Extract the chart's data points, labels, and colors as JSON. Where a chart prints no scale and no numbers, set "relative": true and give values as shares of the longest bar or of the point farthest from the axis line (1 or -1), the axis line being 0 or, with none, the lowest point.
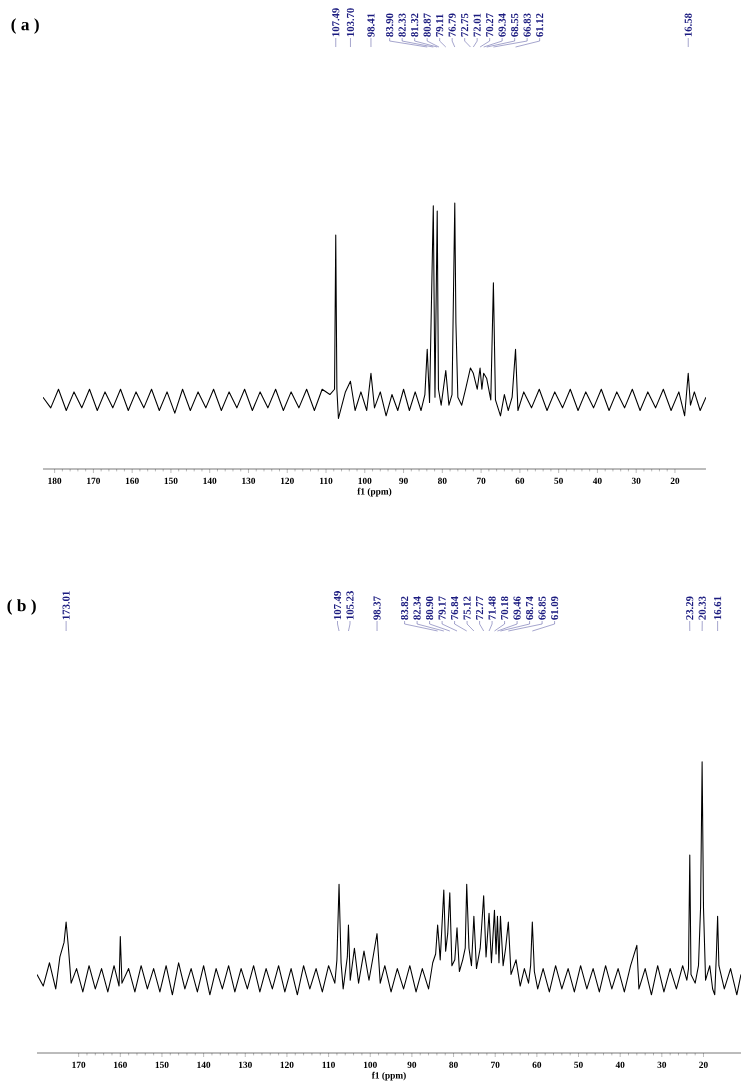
{
  "chart_data": [
    {
      "type": "line",
      "title": "( a )",
      "xlabel": "f1 (ppm)",
      "relative": true,
      "xlim": [
        183,
        12
      ],
      "xticks": [
        180,
        170,
        160,
        150,
        140,
        130,
        120,
        110,
        100,
        90,
        80,
        70,
        60,
        50,
        40,
        30,
        20
      ],
      "color": "#000000",
      "x": [
        183,
        181,
        179,
        177,
        175,
        173,
        171,
        169,
        167,
        165,
        163,
        161,
        159,
        157,
        155,
        153,
        151,
        149,
        147,
        145,
        143,
        141,
        139,
        137,
        135,
        133,
        131,
        129,
        127,
        125,
        123,
        121,
        119,
        117,
        115,
        113,
        111,
        109,
        107.8,
        107.49,
        107.2,
        106.8,
        105,
        103.7,
        102.5,
        101,
        99.5,
        98.41,
        97.5,
        96,
        94.5,
        93,
        91.5,
        90,
        88.5,
        87,
        85.5,
        84.5,
        83.9,
        83.3,
        82.33,
        81.9,
        81.32,
        81,
        80.3,
        79.11,
        78.3,
        77.5,
        76.79,
        76.5,
        76,
        75,
        74,
        72.75,
        72.01,
        71,
        70.27,
        69.8,
        69.34,
        68.55,
        67.5,
        66.83,
        66.3,
        65,
        64,
        63,
        62,
        61.12,
        60.5,
        59,
        57,
        55,
        53,
        51,
        49,
        47,
        45,
        43,
        41,
        39,
        37,
        35,
        33,
        31,
        29,
        27,
        25,
        23,
        21,
        19,
        17.5,
        16.58,
        16,
        15,
        13.5,
        12
      ],
      "values": [
        0.27,
        0.23,
        0.3,
        0.22,
        0.29,
        0.23,
        0.3,
        0.22,
        0.29,
        0.23,
        0.3,
        0.22,
        0.29,
        0.23,
        0.3,
        0.22,
        0.29,
        0.21,
        0.3,
        0.22,
        0.29,
        0.23,
        0.3,
        0.22,
        0.29,
        0.23,
        0.3,
        0.22,
        0.29,
        0.23,
        0.3,
        0.22,
        0.29,
        0.23,
        0.3,
        0.22,
        0.3,
        0.28,
        0.3,
        0.88,
        0.3,
        0.19,
        0.29,
        0.33,
        0.22,
        0.29,
        0.22,
        0.36,
        0.23,
        0.29,
        0.2,
        0.28,
        0.22,
        0.3,
        0.22,
        0.29,
        0.22,
        0.28,
        0.45,
        0.25,
        0.99,
        0.27,
        0.97,
        0.3,
        0.24,
        0.37,
        0.24,
        0.28,
        1.0,
        0.55,
        0.27,
        0.24,
        0.3,
        0.38,
        0.36,
        0.3,
        0.38,
        0.3,
        0.36,
        0.34,
        0.26,
        0.7,
        0.26,
        0.2,
        0.28,
        0.22,
        0.27,
        0.45,
        0.22,
        0.29,
        0.23,
        0.3,
        0.22,
        0.29,
        0.23,
        0.3,
        0.22,
        0.29,
        0.23,
        0.3,
        0.22,
        0.29,
        0.23,
        0.3,
        0.22,
        0.29,
        0.23,
        0.3,
        0.22,
        0.29,
        0.2,
        0.36,
        0.24,
        0.29,
        0.22,
        0.27
      ],
      "annotations": [
        {
          "text": "107.49",
          "x": 107.49
        },
        {
          "text": "103.70",
          "x": 103.7
        },
        {
          "text": "98.41",
          "x": 98.41
        },
        {
          "text": "83.90",
          "x": 83.9
        },
        {
          "text": "82.33",
          "x": 82.33
        },
        {
          "text": "81.32",
          "x": 81.32
        },
        {
          "text": "80.87",
          "x": 80.87
        },
        {
          "text": "79.11",
          "x": 79.11
        },
        {
          "text": "76.79",
          "x": 76.79
        },
        {
          "text": "72.75",
          "x": 72.75
        },
        {
          "text": "72.01",
          "x": 72.01
        },
        {
          "text": "70.27",
          "x": 70.27
        },
        {
          "text": "69.34",
          "x": 69.34
        },
        {
          "text": "68.55",
          "x": 68.55
        },
        {
          "text": "66.83",
          "x": 66.83
        },
        {
          "text": "61.12",
          "x": 61.12
        },
        {
          "text": "16.58",
          "x": 16.58
        }
      ]
    },
    {
      "type": "line",
      "title": "( b )",
      "xlabel": "f1 (ppm)",
      "relative": true,
      "xlim": [
        180,
        11
      ],
      "xticks": [
        170,
        160,
        150,
        140,
        130,
        120,
        110,
        100,
        90,
        80,
        70,
        60,
        50,
        40,
        30,
        20
      ],
      "color": "#000000",
      "x": [
        180,
        178.5,
        177,
        175.5,
        174.5,
        173.5,
        173.01,
        172.5,
        171.8,
        170.5,
        169,
        167.5,
        166,
        164.5,
        163,
        161.5,
        160.3,
        160,
        159.6,
        158,
        156.5,
        155,
        153.5,
        152,
        150.5,
        149,
        147.5,
        146,
        144.5,
        143,
        141.5,
        140,
        138.5,
        137,
        135.5,
        134,
        132.5,
        131,
        129.5,
        128,
        126.5,
        125,
        123.5,
        122,
        120.5,
        119,
        117.5,
        116,
        114.5,
        113,
        111.5,
        110,
        108.5,
        108,
        107.49,
        107,
        106.5,
        105.5,
        105.23,
        104.8,
        103.8,
        102.8,
        101.5,
        100.3,
        99.2,
        98.37,
        97.6,
        96.5,
        95,
        93.5,
        92,
        90.5,
        89,
        87.5,
        86,
        85,
        84.3,
        83.82,
        83.2,
        82.34,
        81.9,
        81.4,
        80.9,
        80.4,
        79.7,
        79.17,
        78.6,
        77.8,
        77.2,
        76.84,
        76.3,
        75.7,
        75.12,
        74.5,
        73.6,
        72.77,
        72.2,
        71.48,
        70.9,
        70.18,
        69.8,
        69.46,
        69.1,
        68.74,
        68.1,
        67.5,
        66.85,
        66.2,
        65,
        64,
        63,
        62,
        61.5,
        61.09,
        60.6,
        59.8,
        58.5,
        57,
        55.5,
        54,
        52.5,
        51,
        49.5,
        48,
        46.5,
        45,
        43.5,
        42,
        40.5,
        39,
        37.5,
        36,
        35.5,
        34,
        32.5,
        31,
        29.5,
        28,
        26.5,
        25,
        24,
        23.6,
        23.29,
        23,
        22,
        21.2,
        20.7,
        20.33,
        20,
        19.5,
        18.5,
        17.8,
        17.3,
        16.9,
        16.61,
        16.3,
        15,
        13.5,
        12,
        11
      ],
      "values": [
        0.27,
        0.23,
        0.31,
        0.22,
        0.33,
        0.38,
        0.45,
        0.37,
        0.24,
        0.29,
        0.21,
        0.3,
        0.22,
        0.29,
        0.21,
        0.3,
        0.23,
        0.4,
        0.24,
        0.29,
        0.21,
        0.3,
        0.22,
        0.29,
        0.21,
        0.3,
        0.2,
        0.31,
        0.22,
        0.29,
        0.21,
        0.3,
        0.2,
        0.29,
        0.22,
        0.3,
        0.21,
        0.29,
        0.22,
        0.3,
        0.21,
        0.29,
        0.22,
        0.3,
        0.21,
        0.29,
        0.2,
        0.3,
        0.22,
        0.29,
        0.21,
        0.3,
        0.24,
        0.32,
        0.58,
        0.31,
        0.22,
        0.33,
        0.44,
        0.25,
        0.36,
        0.24,
        0.35,
        0.25,
        0.34,
        0.41,
        0.24,
        0.3,
        0.21,
        0.29,
        0.22,
        0.3,
        0.21,
        0.29,
        0.22,
        0.31,
        0.34,
        0.44,
        0.32,
        0.56,
        0.35,
        0.41,
        0.55,
        0.3,
        0.32,
        0.43,
        0.28,
        0.32,
        0.36,
        0.58,
        0.36,
        0.3,
        0.47,
        0.29,
        0.36,
        0.54,
        0.33,
        0.48,
        0.31,
        0.49,
        0.34,
        0.47,
        0.31,
        0.47,
        0.3,
        0.36,
        0.45,
        0.27,
        0.32,
        0.23,
        0.29,
        0.24,
        0.3,
        0.45,
        0.28,
        0.22,
        0.29,
        0.21,
        0.3,
        0.22,
        0.29,
        0.21,
        0.3,
        0.22,
        0.29,
        0.21,
        0.3,
        0.22,
        0.29,
        0.21,
        0.3,
        0.37,
        0.22,
        0.29,
        0.2,
        0.3,
        0.21,
        0.29,
        0.22,
        0.3,
        0.25,
        0.29,
        0.68,
        0.27,
        0.24,
        0.3,
        0.5,
        1.0,
        0.5,
        0.25,
        0.3,
        0.22,
        0.2,
        0.34,
        0.47,
        0.3,
        0.22,
        0.29,
        0.2,
        0.27
      ],
      "annotations": [
        {
          "text": "173.01",
          "x": 173.01
        },
        {
          "text": "107.49",
          "x": 107.49
        },
        {
          "text": "105.23",
          "x": 105.23
        },
        {
          "text": "98.37",
          "x": 98.37
        },
        {
          "text": "83.82",
          "x": 83.82
        },
        {
          "text": "82.34",
          "x": 82.34
        },
        {
          "text": "80.90",
          "x": 80.9
        },
        {
          "text": "79.17",
          "x": 79.17
        },
        {
          "text": "76.84",
          "x": 76.84
        },
        {
          "text": "75.12",
          "x": 75.12
        },
        {
          "text": "72.77",
          "x": 72.77
        },
        {
          "text": "71.48",
          "x": 71.48
        },
        {
          "text": "70.18",
          "x": 70.18
        },
        {
          "text": "69.46",
          "x": 69.46
        },
        {
          "text": "68.74",
          "x": 68.74
        },
        {
          "text": "66.85",
          "x": 66.85
        },
        {
          "text": "61.09",
          "x": 61.09
        },
        {
          "text": "23.29",
          "x": 23.29
        },
        {
          "text": "20.33",
          "x": 20.33
        },
        {
          "text": "16.61",
          "x": 16.61
        }
      ]
    }
  ]
}
